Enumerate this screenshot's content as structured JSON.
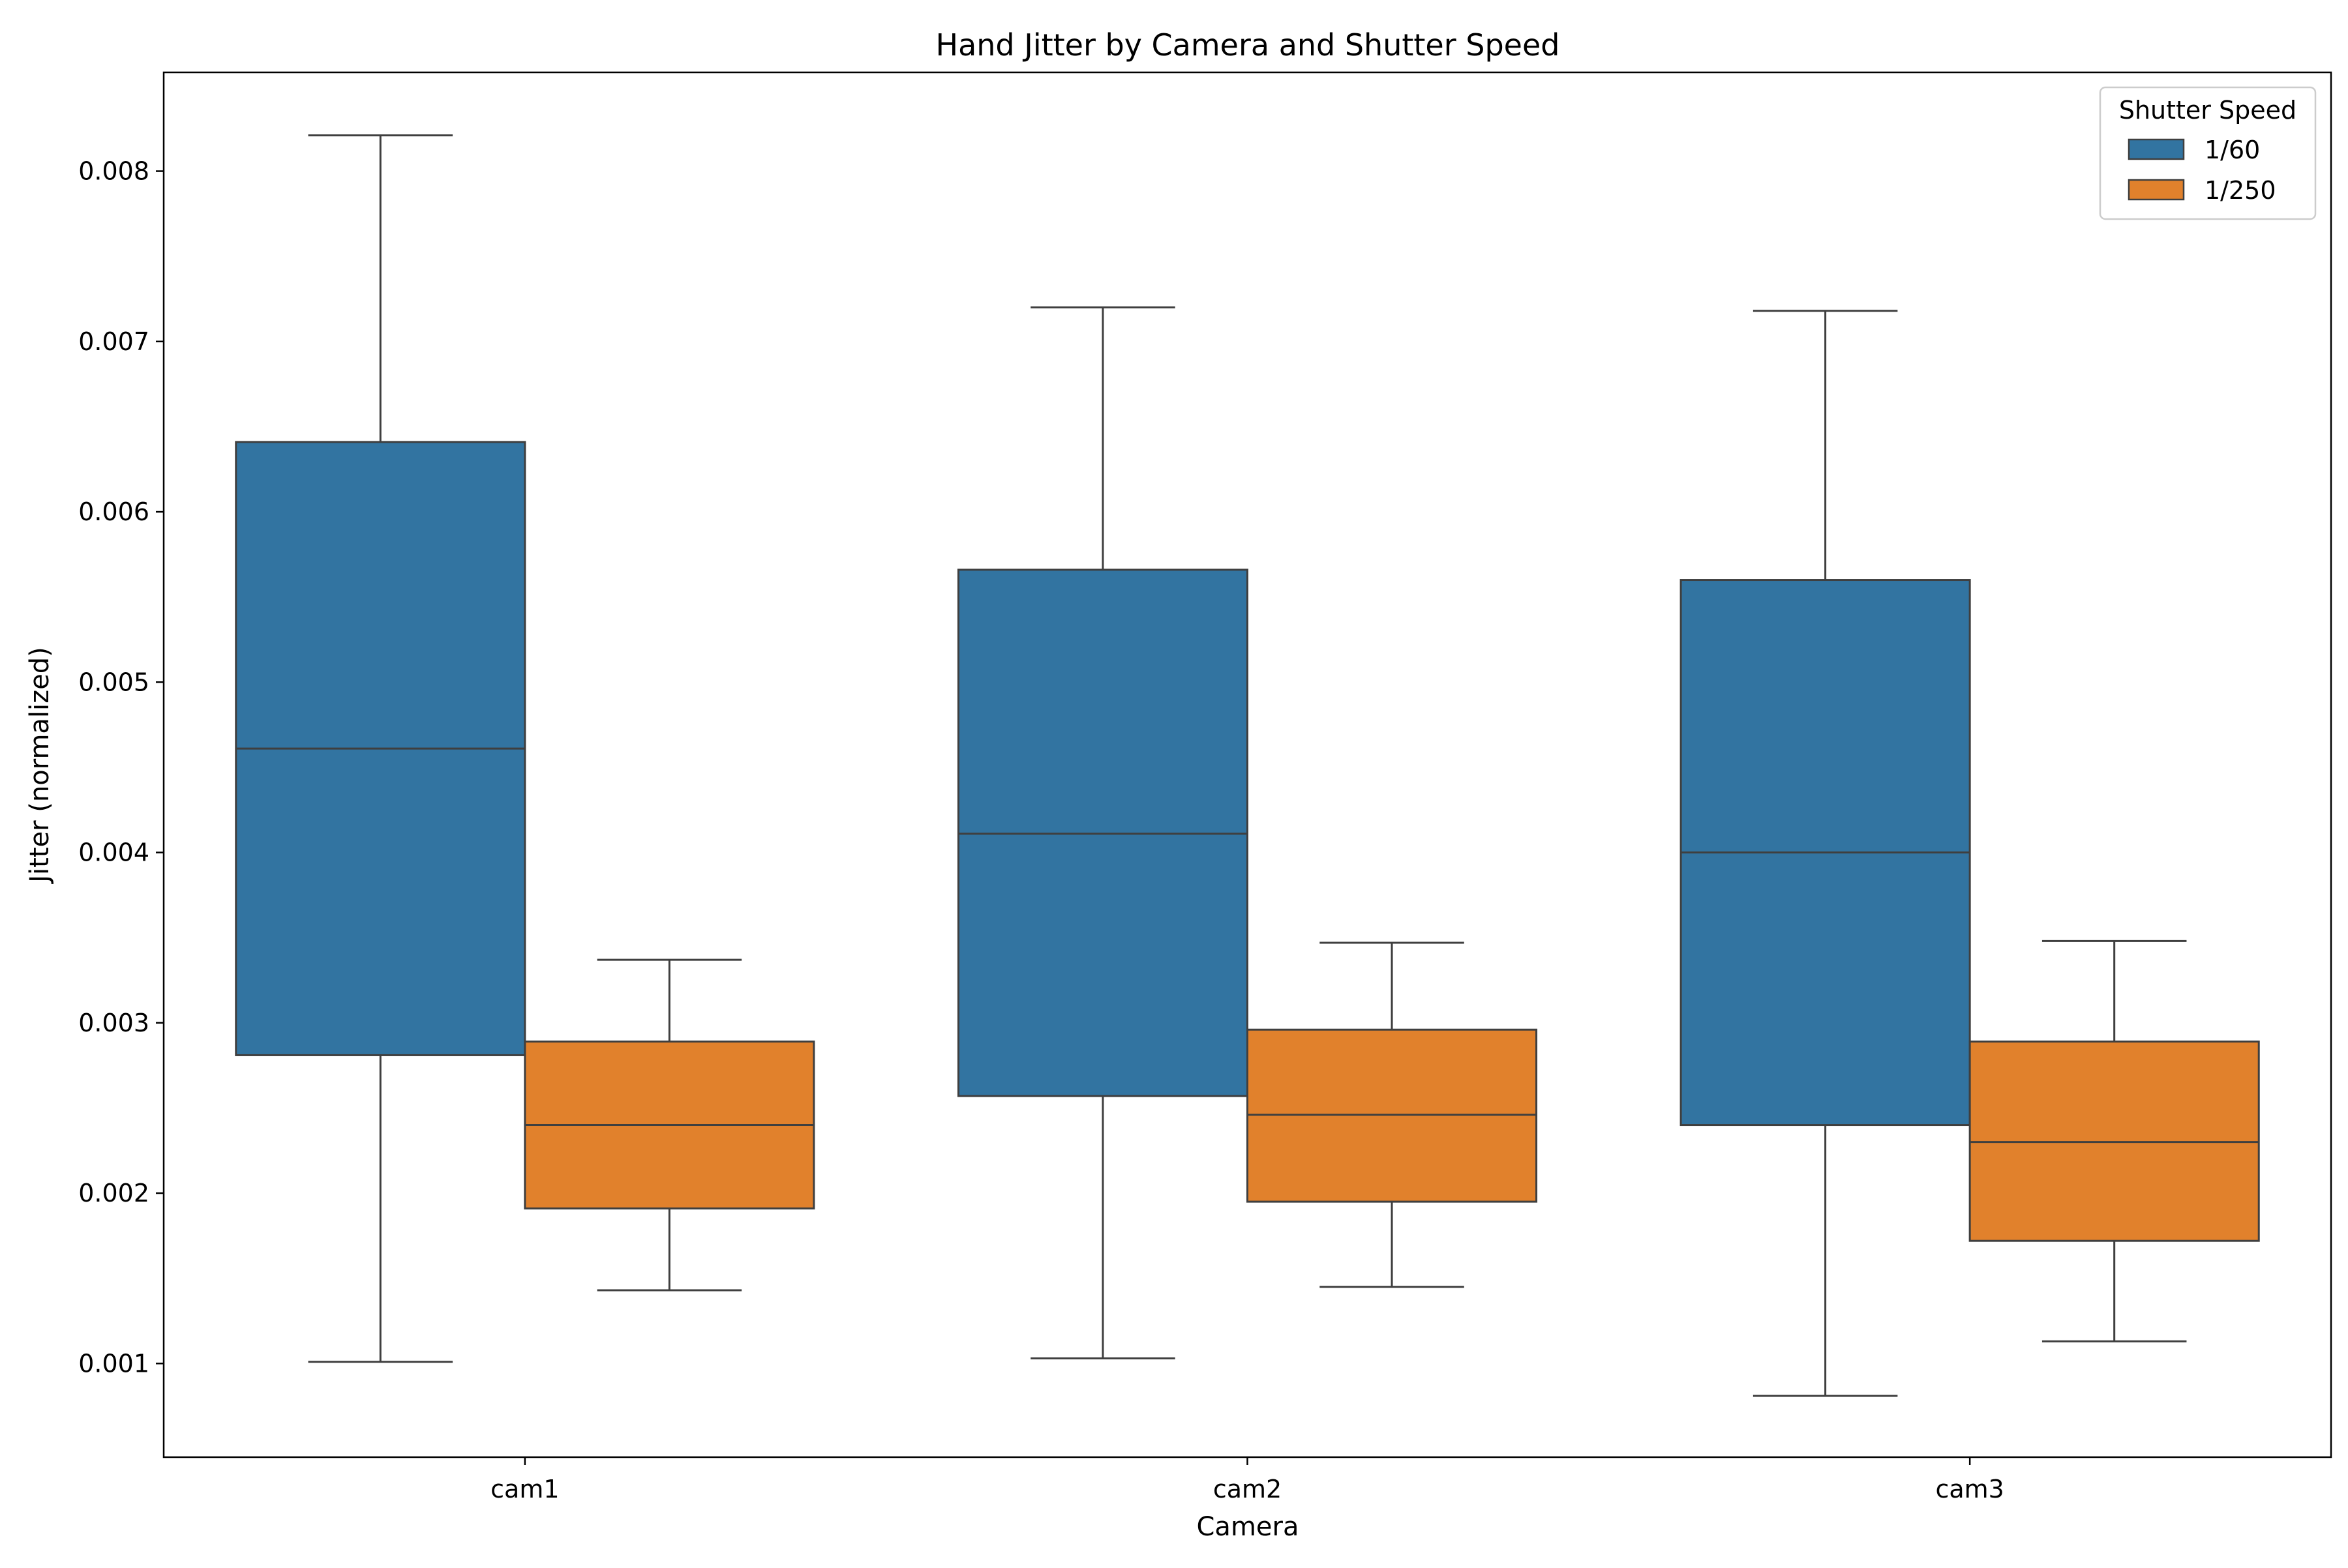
{
  "chart_data": {
    "type": "box",
    "title": "Hand Jitter by Camera and Shutter Speed",
    "xlabel": "Camera",
    "ylabel": "Jitter (normalized)",
    "ylim": [
      0.00045,
      0.00858
    ],
    "yticks": [
      0.001,
      0.002,
      0.003,
      0.004,
      0.005,
      0.006,
      0.007,
      0.008
    ],
    "ytick_labels": [
      "0.001",
      "0.002",
      "0.003",
      "0.004",
      "0.005",
      "0.006",
      "0.007",
      "0.008"
    ],
    "categories": [
      "cam1",
      "cam2",
      "cam3"
    ],
    "legend": {
      "title": "Shutter Speed",
      "location": "upper right"
    },
    "grid": false,
    "series": [
      {
        "name": "1/60",
        "color": "#3274a1",
        "boxes": [
          {
            "category": "cam1",
            "whisker_low": 0.00101,
            "q1": 0.00281,
            "median": 0.00461,
            "q3": 0.00641,
            "whisker_high": 0.00821
          },
          {
            "category": "cam2",
            "whisker_low": 0.00103,
            "q1": 0.00257,
            "median": 0.00411,
            "q3": 0.00566,
            "whisker_high": 0.0072
          },
          {
            "category": "cam3",
            "whisker_low": 0.00081,
            "q1": 0.0024,
            "median": 0.004,
            "q3": 0.0056,
            "whisker_high": 0.00718
          }
        ]
      },
      {
        "name": "1/250",
        "color": "#e1812c",
        "boxes": [
          {
            "category": "cam1",
            "whisker_low": 0.00143,
            "q1": 0.00191,
            "median": 0.0024,
            "q3": 0.00289,
            "whisker_high": 0.00337
          },
          {
            "category": "cam2",
            "whisker_low": 0.00145,
            "q1": 0.00195,
            "median": 0.00246,
            "q3": 0.00296,
            "whisker_high": 0.00347
          },
          {
            "category": "cam3",
            "whisker_low": 0.00113,
            "q1": 0.00172,
            "median": 0.0023,
            "q3": 0.00289,
            "whisker_high": 0.00348
          }
        ]
      }
    ]
  }
}
